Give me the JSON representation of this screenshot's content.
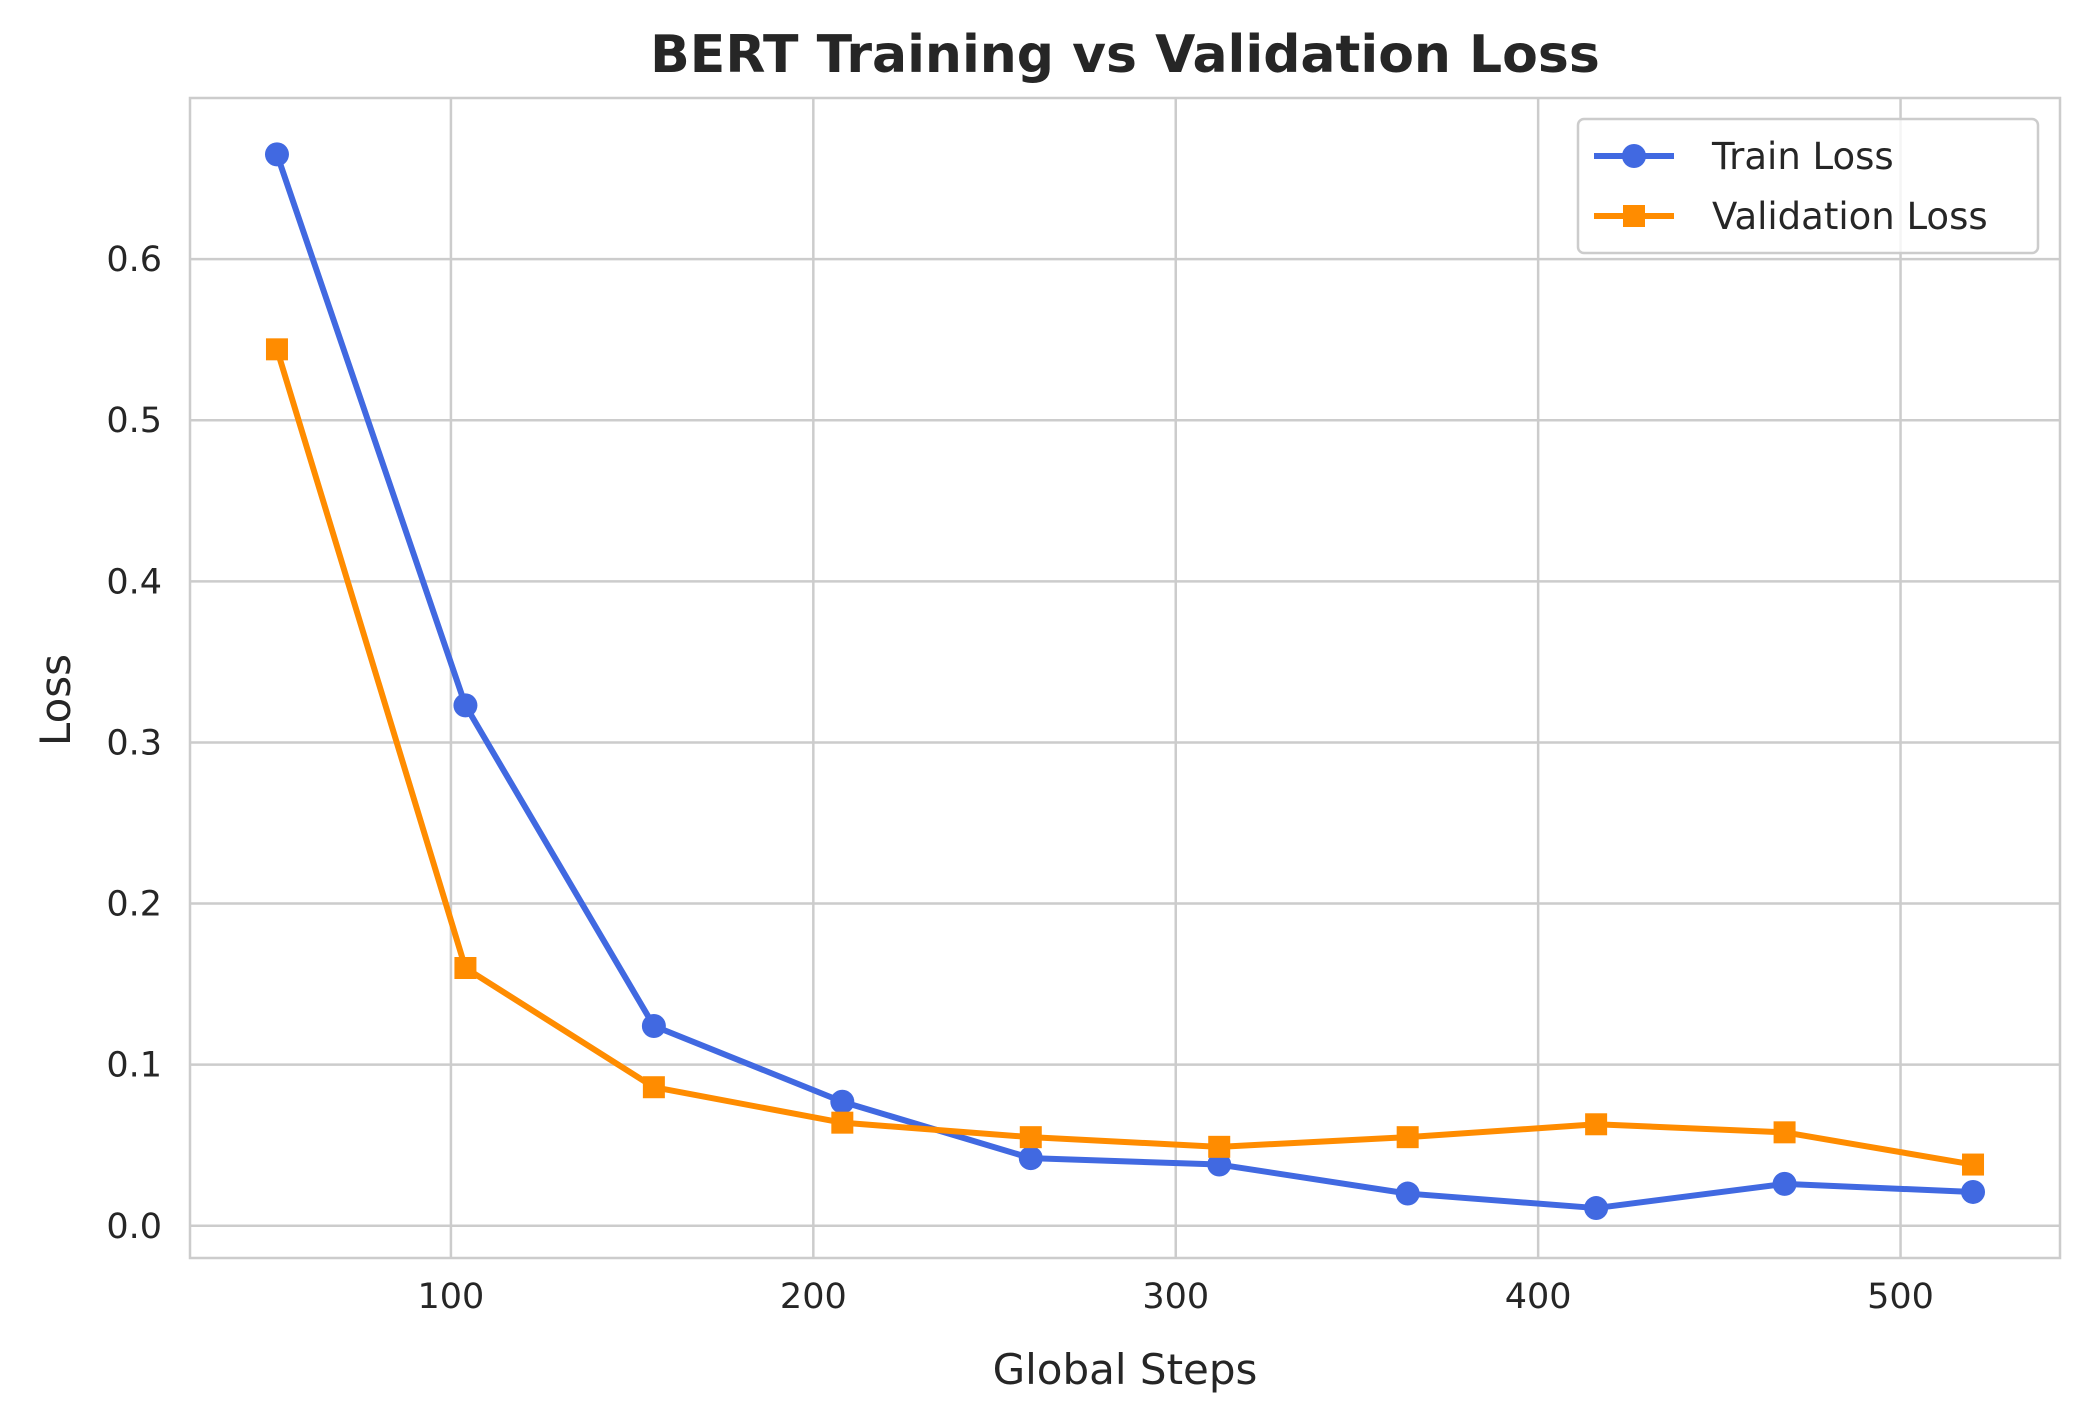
{
  "chart_data": {
    "type": "line",
    "title": "BERT Training vs Validation Loss",
    "xlabel": "Global Steps",
    "ylabel": "Loss",
    "xlim": [
      28,
      544
    ],
    "ylim": [
      -0.02,
      0.7
    ],
    "xticks": [
      100,
      200,
      300,
      400,
      500
    ],
    "xtick_labels": [
      "100",
      "200",
      "300",
      "400",
      "500"
    ],
    "yticks": [
      0.0,
      0.1,
      0.2,
      0.3,
      0.4,
      0.5,
      0.6
    ],
    "ytick_labels": [
      "0.0",
      "0.1",
      "0.2",
      "0.3",
      "0.4",
      "0.5",
      "0.6"
    ],
    "grid": true,
    "legend_position": "top-right",
    "x": [
      52,
      104,
      156,
      208,
      260,
      312,
      364,
      416,
      468,
      520
    ],
    "series": [
      {
        "name": "Train Loss",
        "color": "#4169e1",
        "marker": "circle",
        "values": [
          0.665,
          0.323,
          0.124,
          0.077,
          0.042,
          0.038,
          0.02,
          0.011,
          0.026,
          0.021
        ]
      },
      {
        "name": "Validation Loss",
        "color": "#ff8c00",
        "marker": "square",
        "values": [
          0.544,
          0.16,
          0.086,
          0.064,
          0.055,
          0.049,
          0.055,
          0.063,
          0.058,
          0.038
        ]
      }
    ]
  }
}
